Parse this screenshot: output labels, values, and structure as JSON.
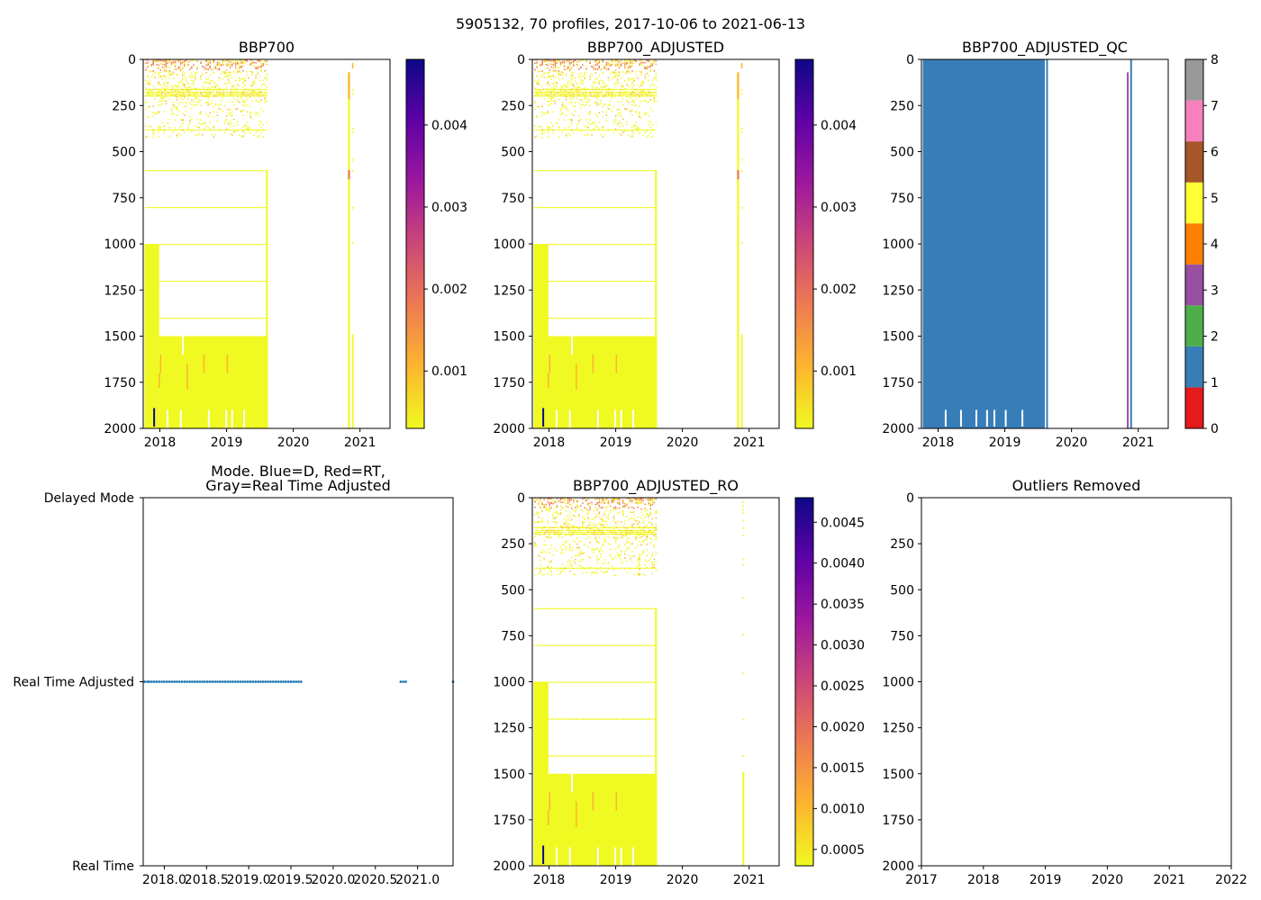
{
  "suptitle": "5905132, 70 profiles, 2017-10-06 to 2021-06-13",
  "colors": {
    "cmap_plasma_r": [
      "#f0f921",
      "#fdb42f",
      "#ed7953",
      "#cc4778",
      "#9c179e",
      "#5c01a6",
      "#0d0887"
    ],
    "qc_classes": [
      "#e41a1c",
      "#377eb8",
      "#4daf4a",
      "#984ea3",
      "#ff7f00",
      "#ffff33",
      "#a65628",
      "#f781bf",
      "#999999"
    ],
    "mode_points": "#1f77b4"
  },
  "chart_data": [
    {
      "id": "bbp700",
      "type": "heatmap",
      "title": "BBP700",
      "xlabel": "",
      "ylabel": "",
      "x_range_year": [
        2017.75,
        2021.45
      ],
      "y_range_depth": [
        2000,
        0
      ],
      "x_ticks": [
        "2018",
        "2019",
        "2020",
        "2021"
      ],
      "y_ticks": [
        "0",
        "250",
        "500",
        "750",
        "1000",
        "1250",
        "1500",
        "1750",
        "2000"
      ],
      "colorbar": {
        "range": [
          0.0003,
          0.0048
        ],
        "ticks": [
          "0.001",
          "0.002",
          "0.003",
          "0.004"
        ],
        "tick_values": [
          0.001,
          0.002,
          0.003,
          0.004
        ]
      },
      "summary": "Sparse low values (~0.0003-0.001) in upper 400 m for 2017.8-2019.6 with higher values (to ~0.0015) near surface; horizontal sampling lines near 600, 800, 1000, 1200, 1400 m; dense yellow block 1000-2000 m for 2017.8-2018.0 and 1500-2000 m for 2018.0-2019.6; isolated high value ~0.0048 near 1900 m in late 2017; profiles near 2020.8-2020.9 spanning 75-2000 m."
    },
    {
      "id": "bbp700_adjusted",
      "type": "heatmap",
      "title": "BBP700_ADJUSTED",
      "xlabel": "",
      "ylabel": "",
      "x_range_year": [
        2017.75,
        2021.45
      ],
      "y_range_depth": [
        2000,
        0
      ],
      "x_ticks": [
        "2018",
        "2019",
        "2020",
        "2021"
      ],
      "y_ticks": [
        "0",
        "250",
        "500",
        "750",
        "1000",
        "1250",
        "1500",
        "1750",
        "2000"
      ],
      "colorbar": {
        "range": [
          0.0003,
          0.0048
        ],
        "ticks": [
          "0.001",
          "0.002",
          "0.003",
          "0.004"
        ],
        "tick_values": [
          0.001,
          0.002,
          0.003,
          0.004
        ]
      },
      "summary": "Identical in pattern to BBP700."
    },
    {
      "id": "bbp700_adjusted_qc",
      "type": "heatmap",
      "title": "BBP700_ADJUSTED_QC",
      "xlabel": "",
      "ylabel": "",
      "x_range_year": [
        2017.75,
        2021.45
      ],
      "y_range_depth": [
        2000,
        0
      ],
      "x_ticks": [
        "2018",
        "2019",
        "2020",
        "2021"
      ],
      "y_ticks": [
        "0",
        "250",
        "500",
        "750",
        "1000",
        "1250",
        "1500",
        "1750",
        "2000"
      ],
      "colorbar": {
        "type": "discrete",
        "range": [
          0,
          8
        ],
        "ticks": [
          "0",
          "1",
          "2",
          "3",
          "4",
          "5",
          "6",
          "7",
          "8"
        ]
      },
      "summary": "QC flag 1 (blue) over nearly all data 2017.8-2019.65, one flag-1 profile near 2020.9 and a flag-3 (purple) profile near 2020.83."
    },
    {
      "id": "mode",
      "type": "scatter",
      "title": "Mode. Blue=D, Red=RT,\nGray=Real Time Adjusted",
      "xlabel": "",
      "ylabel": "",
      "x_range": [
        2017.75,
        2021.42
      ],
      "y_categories": [
        "Real Time",
        "Real Time Adjusted",
        "Delayed Mode"
      ],
      "x_ticks": [
        "2018.0",
        "2018.5",
        "2019.0",
        "2019.5",
        "2020.0",
        "2020.5",
        "2021.0"
      ],
      "x_tick_values": [
        2018.0,
        2018.5,
        2019.0,
        2019.5,
        2020.0,
        2020.5,
        2021.0
      ],
      "points": [
        [
          2017.77,
          1
        ],
        [
          2017.8,
          1
        ],
        [
          2017.82,
          1
        ],
        [
          2017.85,
          1
        ],
        [
          2017.88,
          1
        ],
        [
          2017.91,
          1
        ],
        [
          2017.94,
          1
        ],
        [
          2017.97,
          1
        ],
        [
          2018.0,
          1
        ],
        [
          2018.03,
          1
        ],
        [
          2018.06,
          1
        ],
        [
          2018.09,
          1
        ],
        [
          2018.12,
          1
        ],
        [
          2018.15,
          1
        ],
        [
          2018.18,
          1
        ],
        [
          2018.21,
          1
        ],
        [
          2018.24,
          1
        ],
        [
          2018.27,
          1
        ],
        [
          2018.3,
          1
        ],
        [
          2018.33,
          1
        ],
        [
          2018.36,
          1
        ],
        [
          2018.39,
          1
        ],
        [
          2018.42,
          1
        ],
        [
          2018.45,
          1
        ],
        [
          2018.48,
          1
        ],
        [
          2018.51,
          1
        ],
        [
          2018.54,
          1
        ],
        [
          2018.57,
          1
        ],
        [
          2018.6,
          1
        ],
        [
          2018.63,
          1
        ],
        [
          2018.66,
          1
        ],
        [
          2018.69,
          1
        ],
        [
          2018.72,
          1
        ],
        [
          2018.75,
          1
        ],
        [
          2018.78,
          1
        ],
        [
          2018.81,
          1
        ],
        [
          2018.84,
          1
        ],
        [
          2018.87,
          1
        ],
        [
          2018.9,
          1
        ],
        [
          2018.93,
          1
        ],
        [
          2018.96,
          1
        ],
        [
          2018.99,
          1
        ],
        [
          2019.02,
          1
        ],
        [
          2019.05,
          1
        ],
        [
          2019.08,
          1
        ],
        [
          2019.11,
          1
        ],
        [
          2019.14,
          1
        ],
        [
          2019.17,
          1
        ],
        [
          2019.2,
          1
        ],
        [
          2019.23,
          1
        ],
        [
          2019.26,
          1
        ],
        [
          2019.29,
          1
        ],
        [
          2019.32,
          1
        ],
        [
          2019.35,
          1
        ],
        [
          2019.38,
          1
        ],
        [
          2019.41,
          1
        ],
        [
          2019.44,
          1
        ],
        [
          2019.47,
          1
        ],
        [
          2019.5,
          1
        ],
        [
          2019.53,
          1
        ],
        [
          2019.56,
          1
        ],
        [
          2019.59,
          1
        ],
        [
          2019.62,
          1
        ],
        [
          2020.8,
          1
        ],
        [
          2020.83,
          1
        ],
        [
          2020.86,
          1
        ],
        [
          2021.42,
          1
        ]
      ]
    },
    {
      "id": "bbp700_adjusted_ro",
      "type": "heatmap",
      "title": "BBP700_ADJUSTED_RO",
      "xlabel": "",
      "ylabel": "",
      "x_range_year": [
        2017.75,
        2021.45
      ],
      "y_range_depth": [
        2000,
        0
      ],
      "x_ticks": [
        "2018",
        "2019",
        "2020",
        "2021"
      ],
      "y_ticks": [
        "0",
        "250",
        "500",
        "750",
        "1000",
        "1250",
        "1500",
        "1750",
        "2000"
      ],
      "colorbar": {
        "range": [
          0.0003,
          0.0048
        ],
        "ticks": [
          "0.0005",
          "0.0010",
          "0.0015",
          "0.0020",
          "0.0025",
          "0.0030",
          "0.0035",
          "0.0040",
          "0.0045"
        ],
        "tick_values": [
          0.0005,
          0.001,
          0.0015,
          0.002,
          0.0025,
          0.003,
          0.0035,
          0.004,
          0.0045
        ]
      },
      "summary": "Same as BBP700_ADJUSTED with outliers removed; the late-2020 profile is sparse down to 1500 m and continuous 1500-2000 m."
    },
    {
      "id": "outliers_removed",
      "type": "scatter",
      "title": "Outliers Removed",
      "xlabel": "",
      "ylabel": "",
      "x_range": [
        2017,
        2022
      ],
      "y_range_depth": [
        2000,
        0
      ],
      "x_ticks": [
        "2017",
        "2018",
        "2019",
        "2020",
        "2021",
        "2022"
      ],
      "y_ticks": [
        "0",
        "250",
        "500",
        "750",
        "1000",
        "1250",
        "1500",
        "1750",
        "2000"
      ],
      "points": []
    }
  ]
}
